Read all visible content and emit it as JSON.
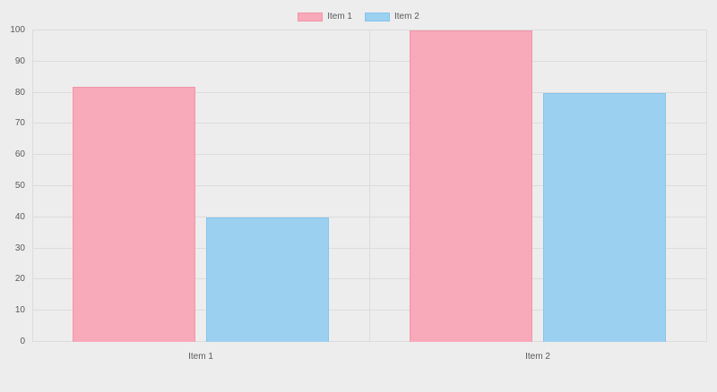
{
  "chart_data": {
    "type": "bar",
    "categories": [
      "Item 1",
      "Item 2"
    ],
    "series": [
      {
        "name": "Item 1",
        "values": [
          82,
          100
        ],
        "fill": "#f8a9ba",
        "border": "#f295a8"
      },
      {
        "name": "Item 2",
        "values": [
          40,
          80
        ],
        "fill": "#9bd0f0",
        "border": "#86c5ec"
      }
    ],
    "title": "",
    "xlabel": "",
    "ylabel": "",
    "ylim": [
      0,
      100
    ],
    "yticks": [
      0,
      10,
      20,
      30,
      40,
      50,
      60,
      70,
      80,
      90,
      100
    ],
    "grid": true,
    "legend_position": "top",
    "colors": {
      "background": "#ededed",
      "gridline": "#dcdcdc",
      "tick_text": "#595959"
    }
  }
}
